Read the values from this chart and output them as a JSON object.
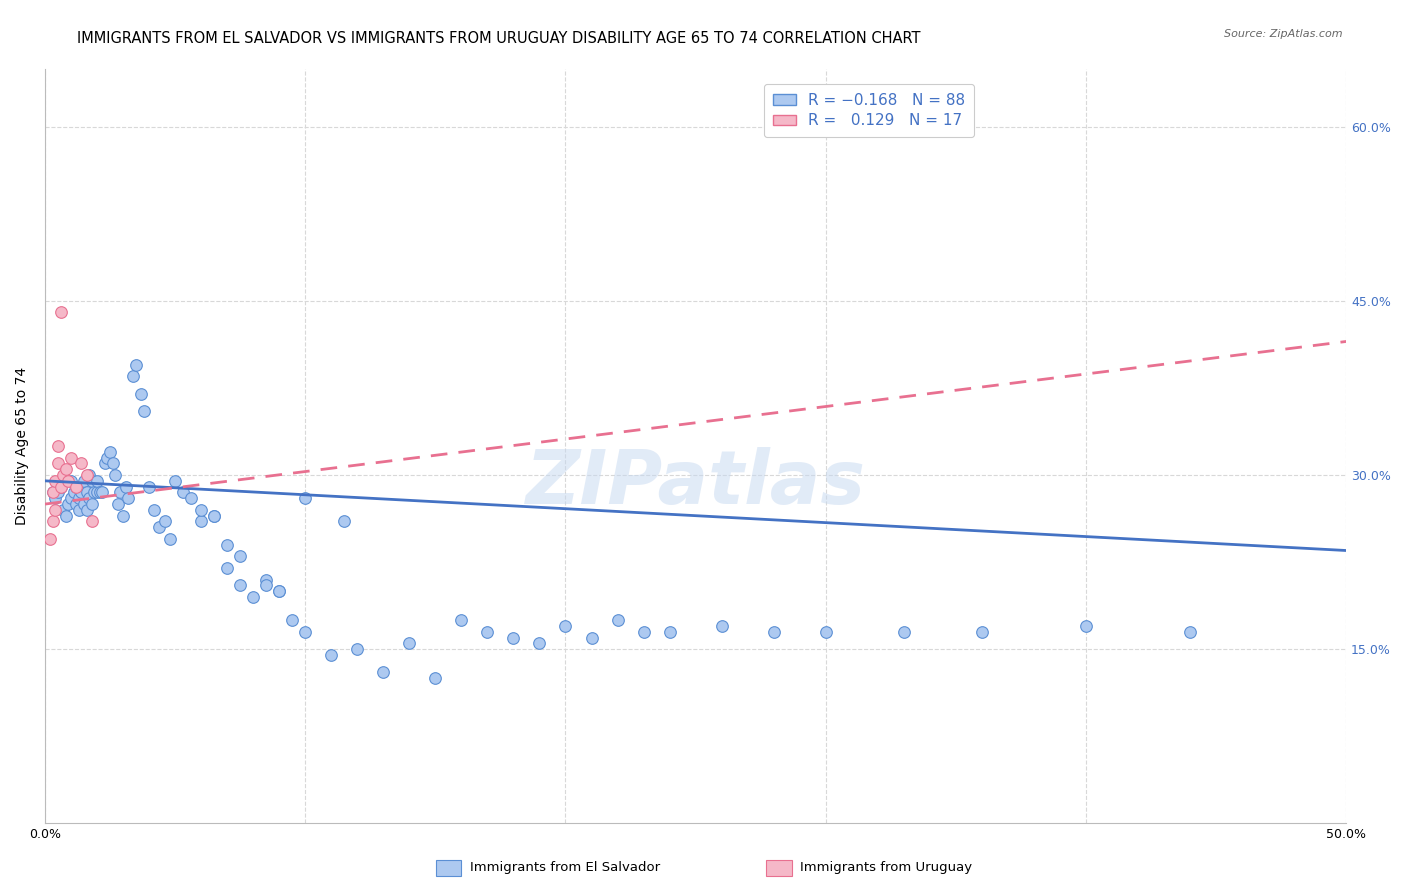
{
  "title": "IMMIGRANTS FROM EL SALVADOR VS IMMIGRANTS FROM URUGUAY DISABILITY AGE 65 TO 74 CORRELATION CHART",
  "source": "Source: ZipAtlas.com",
  "ylabel": "Disability Age 65 to 74",
  "x_min": 0.0,
  "x_max": 0.5,
  "y_min": 0.0,
  "y_max": 0.65,
  "x_tick_positions": [
    0.0,
    0.1,
    0.2,
    0.3,
    0.4,
    0.5
  ],
  "x_tick_labels": [
    "0.0%",
    "",
    "",
    "",
    "",
    "50.0%"
  ],
  "y_tick_values": [
    0.15,
    0.3,
    0.45,
    0.6
  ],
  "y_tick_labels": [
    "15.0%",
    "30.0%",
    "45.0%",
    "60.0%"
  ],
  "color_es": "#adc9f0",
  "color_uy": "#f5b8c8",
  "edge_es": "#5b8fd4",
  "edge_uy": "#e87090",
  "line_es": "#4472c4",
  "line_uy": "#e87090",
  "watermark": "ZIPatlas",
  "bg": "#ffffff",
  "grid_color": "#d8d8d8",
  "marker_size": 70,
  "es_x": [
    0.003,
    0.004,
    0.005,
    0.006,
    0.007,
    0.008,
    0.009,
    0.01,
    0.01,
    0.011,
    0.012,
    0.012,
    0.013,
    0.013,
    0.014,
    0.015,
    0.015,
    0.016,
    0.016,
    0.017,
    0.017,
    0.018,
    0.018,
    0.019,
    0.02,
    0.02,
    0.021,
    0.022,
    0.023,
    0.024,
    0.025,
    0.026,
    0.027,
    0.028,
    0.029,
    0.03,
    0.031,
    0.032,
    0.034,
    0.035,
    0.037,
    0.038,
    0.04,
    0.042,
    0.044,
    0.046,
    0.048,
    0.05,
    0.053,
    0.056,
    0.06,
    0.065,
    0.07,
    0.075,
    0.08,
    0.085,
    0.09,
    0.095,
    0.1,
    0.11,
    0.12,
    0.13,
    0.14,
    0.15,
    0.16,
    0.17,
    0.18,
    0.19,
    0.2,
    0.21,
    0.22,
    0.23,
    0.24,
    0.26,
    0.28,
    0.3,
    0.33,
    0.36,
    0.4,
    0.44,
    0.06,
    0.065,
    0.07,
    0.075,
    0.085,
    0.09,
    0.1,
    0.115
  ],
  "es_y": [
    0.285,
    0.28,
    0.285,
    0.29,
    0.27,
    0.265,
    0.275,
    0.28,
    0.295,
    0.285,
    0.275,
    0.29,
    0.28,
    0.27,
    0.285,
    0.275,
    0.295,
    0.27,
    0.285,
    0.3,
    0.28,
    0.295,
    0.275,
    0.285,
    0.285,
    0.295,
    0.285,
    0.285,
    0.31,
    0.315,
    0.32,
    0.31,
    0.3,
    0.275,
    0.285,
    0.265,
    0.29,
    0.28,
    0.385,
    0.395,
    0.37,
    0.355,
    0.29,
    0.27,
    0.255,
    0.26,
    0.245,
    0.295,
    0.285,
    0.28,
    0.26,
    0.265,
    0.24,
    0.23,
    0.195,
    0.21,
    0.2,
    0.175,
    0.165,
    0.145,
    0.15,
    0.13,
    0.155,
    0.125,
    0.175,
    0.165,
    0.16,
    0.155,
    0.17,
    0.16,
    0.175,
    0.165,
    0.165,
    0.17,
    0.165,
    0.165,
    0.165,
    0.165,
    0.17,
    0.165,
    0.27,
    0.265,
    0.22,
    0.205,
    0.205,
    0.2,
    0.28,
    0.26
  ],
  "uy_x": [
    0.002,
    0.003,
    0.003,
    0.004,
    0.004,
    0.005,
    0.005,
    0.006,
    0.006,
    0.007,
    0.008,
    0.009,
    0.01,
    0.012,
    0.014,
    0.016,
    0.018
  ],
  "uy_y": [
    0.245,
    0.26,
    0.285,
    0.295,
    0.27,
    0.31,
    0.325,
    0.44,
    0.29,
    0.3,
    0.305,
    0.295,
    0.315,
    0.29,
    0.31,
    0.3,
    0.26
  ],
  "es_line_x": [
    0.0,
    0.5
  ],
  "es_line_y": [
    0.295,
    0.235
  ],
  "uy_line_x": [
    0.0,
    0.5
  ],
  "uy_line_y": [
    0.275,
    0.415
  ]
}
